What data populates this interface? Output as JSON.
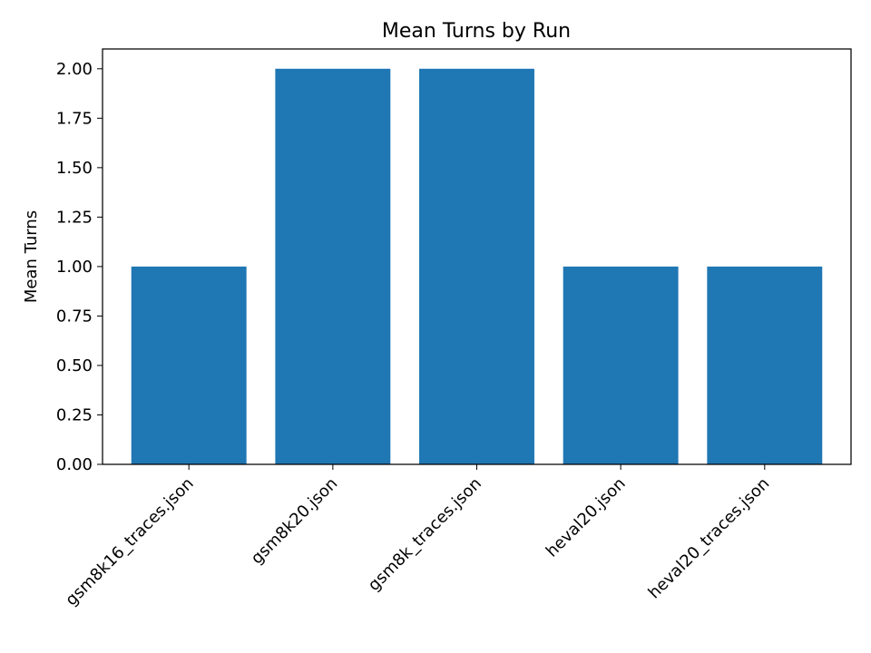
{
  "chart_data": {
    "type": "bar",
    "title": "Mean Turns by Run",
    "xlabel": "",
    "ylabel": "Mean Turns",
    "categories": [
      "gsm8k16_traces.json",
      "gsm8k20.json",
      "gsm8k_traces.json",
      "heval20.json",
      "heval20_traces.json"
    ],
    "values": [
      1.0,
      2.0,
      2.0,
      1.0,
      1.0
    ],
    "ylim": [
      0,
      2.1
    ],
    "yticks": [
      0.0,
      0.25,
      0.5,
      0.75,
      1.0,
      1.25,
      1.5,
      1.75,
      2.0
    ],
    "ytick_labels": [
      "0.00",
      "0.25",
      "0.50",
      "0.75",
      "1.00",
      "1.25",
      "1.50",
      "1.75",
      "2.00"
    ],
    "bar_color": "#1f77b4",
    "grid": false,
    "x_tick_rotation": "45-degree, right-aligned"
  }
}
